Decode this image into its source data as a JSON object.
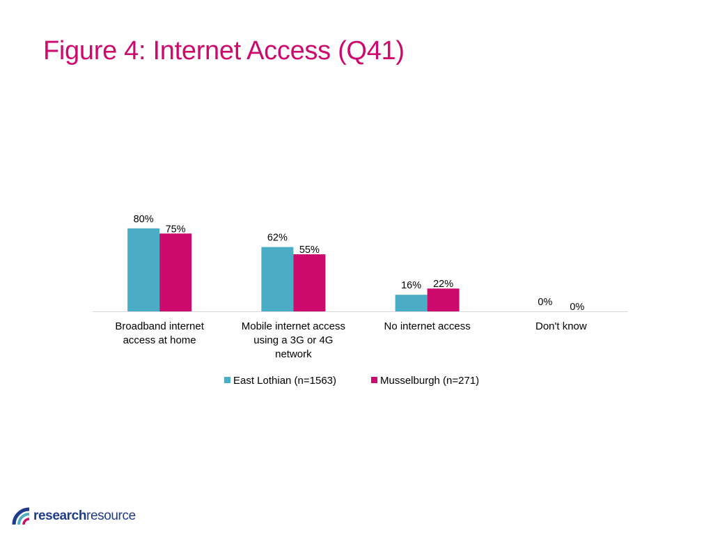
{
  "page": {
    "title": "Figure 4: Internet Access (Q41)"
  },
  "colors": {
    "title": "#cc0a6e",
    "series_1": "#4bacc6",
    "series_2": "#cc0a6e",
    "axis": "#d9d9d9",
    "logo": "#1f3c8c"
  },
  "chart_data": {
    "type": "bar",
    "title": "",
    "xlabel": "",
    "ylabel": "",
    "ylim": [
      0,
      100
    ],
    "grid": false,
    "legend_position": "bottom",
    "categories": [
      [
        "Broadband internet",
        "access at home"
      ],
      [
        "Mobile internet access",
        "using a 3G or 4G",
        "network"
      ],
      [
        "No internet access"
      ],
      [
        "Don't know"
      ]
    ],
    "series": [
      {
        "name": "East Lothian (n=1563)",
        "values": [
          80,
          62,
          16,
          0
        ],
        "labels": [
          "80%",
          "62%",
          "16%",
          "0%"
        ],
        "color": "#4bacc6"
      },
      {
        "name": "Musselburgh (n=271)",
        "values": [
          75,
          55,
          22,
          0
        ],
        "labels": [
          "75%",
          "55%",
          "22%",
          "0%"
        ],
        "color": "#cc0a6e"
      }
    ]
  },
  "logo": {
    "part_bold": "research",
    "part_regular": "resource"
  }
}
